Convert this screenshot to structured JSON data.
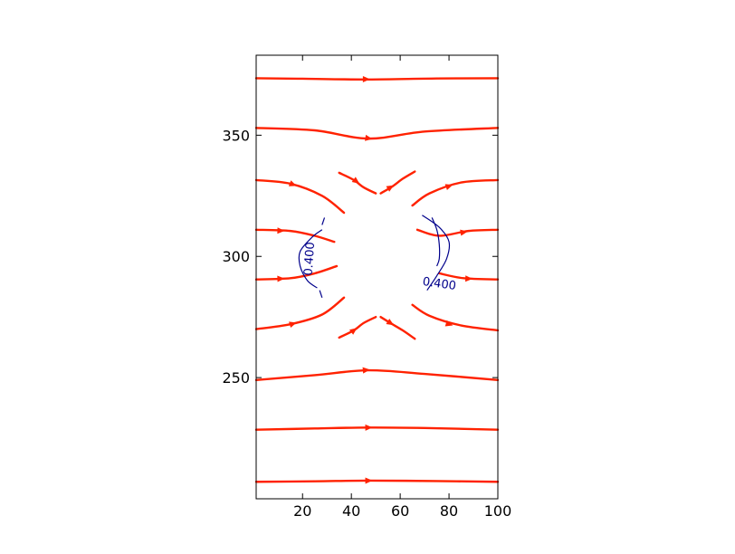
{
  "chart_data": {
    "type": "streamplot",
    "title": "",
    "xlabel": "",
    "ylabel": "",
    "xlim": [
      1,
      100
    ],
    "ylim": [
      200,
      383
    ],
    "x_ticks": [
      20,
      40,
      60,
      80,
      100
    ],
    "y_ticks": [
      250,
      300,
      350
    ],
    "grid": false,
    "stream_color": "#ff2200",
    "contour_color": "#00008b",
    "contour_label": "0.400",
    "streamlines": [
      {
        "points": [
          [
            1,
            373.5
          ],
          [
            20,
            373.3
          ],
          [
            47,
            373
          ],
          [
            75,
            373.4
          ],
          [
            100,
            373.5
          ]
        ],
        "arrows": [
          [
            46,
            373.1
          ]
        ]
      },
      {
        "points": [
          [
            1,
            353
          ],
          [
            25,
            352
          ],
          [
            47,
            348.6
          ],
          [
            70,
            351.5
          ],
          [
            100,
            353
          ]
        ],
        "arrows": [
          [
            47,
            348.7
          ]
        ]
      },
      {
        "points": [
          [
            1,
            331.5
          ],
          [
            15,
            330
          ],
          [
            28,
            325
          ],
          [
            37,
            318
          ]
        ],
        "arrows": [
          [
            16,
            329.7
          ]
        ]
      },
      {
        "points": [
          [
            35,
            334.5
          ],
          [
            41,
            331.5
          ],
          [
            45,
            328.5
          ],
          [
            50,
            326
          ]
        ],
        "arrows": [
          [
            42,
            331
          ]
        ]
      },
      {
        "points": [
          [
            52,
            326
          ],
          [
            57,
            329
          ],
          [
            61,
            332
          ],
          [
            66,
            335
          ]
        ],
        "arrows": [
          [
            56,
            328.5
          ]
        ]
      },
      {
        "points": [
          [
            65,
            321
          ],
          [
            72,
            326
          ],
          [
            85,
            330.5
          ],
          [
            100,
            331.5
          ]
        ],
        "arrows": [
          [
            80,
            329
          ]
        ]
      },
      {
        "points": [
          [
            1,
            311
          ],
          [
            15,
            310.5
          ],
          [
            25,
            308.5
          ],
          [
            33,
            306
          ]
        ],
        "arrows": [
          [
            11,
            310.6
          ]
        ]
      },
      {
        "points": [
          [
            67,
            311
          ],
          [
            76,
            308.5
          ],
          [
            88,
            310.5
          ],
          [
            100,
            311
          ]
        ],
        "arrows": [
          [
            86,
            310
          ]
        ]
      },
      {
        "points": [
          [
            1,
            290.5
          ],
          [
            15,
            291
          ],
          [
            25,
            293
          ],
          [
            34,
            296
          ]
        ],
        "arrows": [
          [
            11,
            290.8
          ]
        ]
      },
      {
        "points": [
          [
            76,
            293
          ],
          [
            86,
            291
          ],
          [
            100,
            290.5
          ]
        ],
        "arrows": [
          [
            88,
            290.8
          ]
        ]
      },
      {
        "points": [
          [
            1,
            270
          ],
          [
            15,
            272
          ],
          [
            28,
            276
          ],
          [
            37,
            283
          ]
        ],
        "arrows": [
          [
            16,
            272.2
          ]
        ]
      },
      {
        "points": [
          [
            35,
            266.5
          ],
          [
            41,
            269.5
          ],
          [
            45,
            272.5
          ],
          [
            50,
            275
          ]
        ],
        "arrows": [
          [
            41,
            269.5
          ]
        ]
      },
      {
        "points": [
          [
            52,
            275
          ],
          [
            56,
            272.5
          ],
          [
            61,
            269.5
          ],
          [
            66,
            266
          ]
        ],
        "arrows": [
          [
            56,
            272.5
          ]
        ]
      },
      {
        "points": [
          [
            65,
            280
          ],
          [
            72,
            275.5
          ],
          [
            85,
            271.5
          ],
          [
            100,
            269.5
          ]
        ],
        "arrows": [
          [
            80,
            272
          ]
        ]
      },
      {
        "points": [
          [
            1,
            249
          ],
          [
            25,
            251
          ],
          [
            47,
            253
          ],
          [
            70,
            251.5
          ],
          [
            100,
            249
          ]
        ],
        "arrows": [
          [
            46,
            253.1
          ]
        ]
      },
      {
        "points": [
          [
            1,
            228.5
          ],
          [
            25,
            229
          ],
          [
            47,
            229.4
          ],
          [
            70,
            229.2
          ],
          [
            100,
            228.5
          ]
        ],
        "arrows": [
          [
            47,
            229.4
          ]
        ]
      },
      {
        "points": [
          [
            1,
            207
          ],
          [
            25,
            207.2
          ],
          [
            47,
            207.5
          ],
          [
            75,
            207.3
          ],
          [
            100,
            207
          ]
        ],
        "arrows": [
          [
            47,
            207.5
          ]
        ]
      }
    ],
    "contours": [
      {
        "points": [
          [
            28,
            311
          ],
          [
            24,
            308
          ],
          [
            19,
            302
          ],
          [
            19,
            296
          ],
          [
            22,
            290
          ],
          [
            26,
            287
          ]
        ],
        "label_at": [
          23,
          299
        ],
        "label_rotation": -86
      },
      {
        "points": [
          [
            27,
            286
          ],
          [
            28,
            283
          ]
        ]
      },
      {
        "points": [
          [
            28,
            313
          ],
          [
            29,
            316
          ]
        ]
      },
      {
        "points": [
          [
            73,
            316
          ],
          [
            75,
            311
          ],
          [
            76,
            305
          ],
          [
            76,
            299
          ],
          [
            75,
            296
          ]
        ]
      },
      {
        "points": [
          [
            69,
            317
          ],
          [
            76,
            312
          ],
          [
            80,
            306
          ],
          [
            79,
            299
          ],
          [
            75,
            292
          ],
          [
            71,
            286
          ]
        ],
        "label_at": [
          76,
          288.5
        ],
        "label_rotation": 8
      }
    ]
  }
}
